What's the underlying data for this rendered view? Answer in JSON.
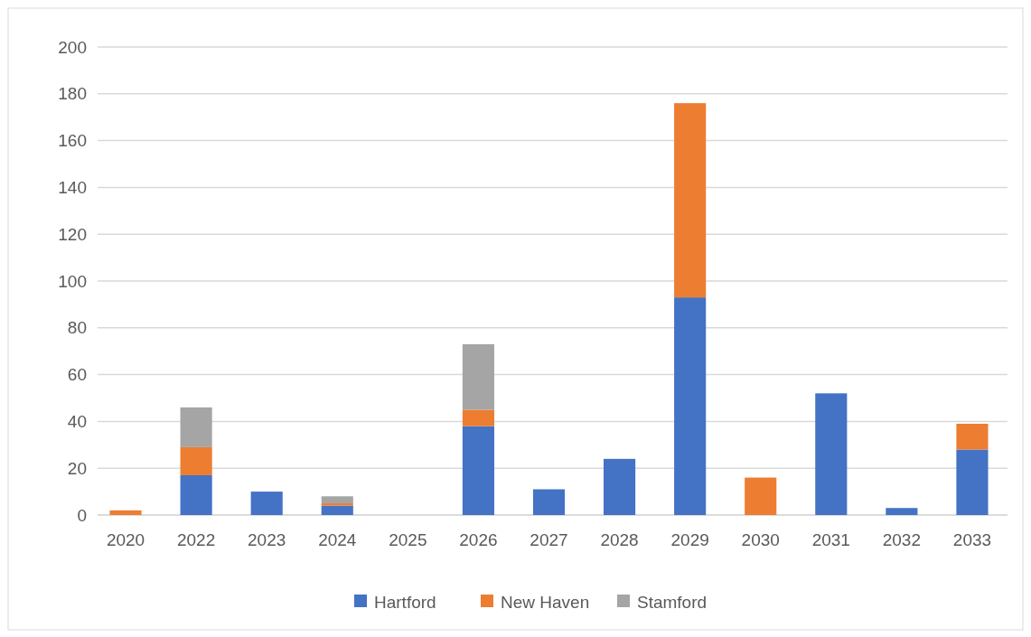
{
  "chart_data": {
    "type": "bar",
    "stacked": true,
    "categories": [
      "2020",
      "2022",
      "2023",
      "2024",
      "2025",
      "2026",
      "2027",
      "2028",
      "2029",
      "2030",
      "2031",
      "2032",
      "2033"
    ],
    "series": [
      {
        "name": "Hartford",
        "color": "#4472c4",
        "values": [
          0,
          17,
          10,
          4,
          0,
          38,
          11,
          24,
          93,
          0,
          52,
          3,
          28
        ]
      },
      {
        "name": "New Haven",
        "color": "#ed7d31",
        "values": [
          2,
          12,
          0,
          1,
          0,
          7,
          0,
          0,
          83,
          16,
          0,
          0,
          11
        ]
      },
      {
        "name": "Stamford",
        "color": "#a5a5a5",
        "values": [
          0,
          17,
          0,
          3,
          0,
          28,
          0,
          0,
          0,
          0,
          0,
          0,
          0
        ]
      }
    ],
    "ylim": [
      0,
      200
    ],
    "yticks": [
      0,
      20,
      40,
      60,
      80,
      100,
      120,
      140,
      160,
      180,
      200
    ],
    "grid": "y",
    "legend": "bottom"
  }
}
